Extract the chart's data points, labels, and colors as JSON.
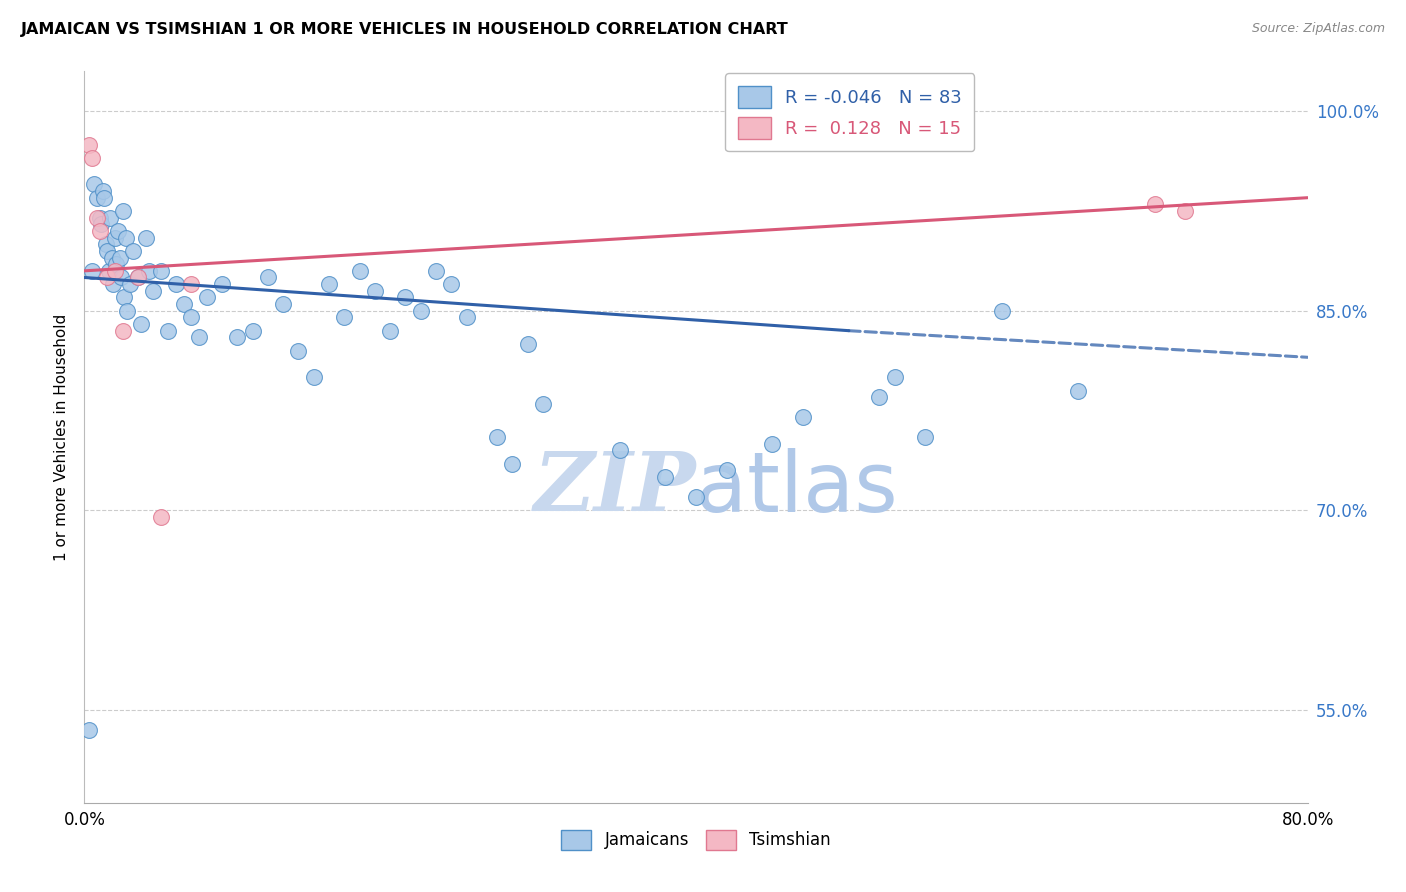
{
  "title": "JAMAICAN VS TSIMSHIAN 1 OR MORE VEHICLES IN HOUSEHOLD CORRELATION CHART",
  "source": "Source: ZipAtlas.com",
  "ylabel": "1 or more Vehicles in Household",
  "xmin": 0.0,
  "xmax": 80.0,
  "ymin": 48.0,
  "ymax": 103.0,
  "yticks": [
    55.0,
    70.0,
    85.0,
    100.0
  ],
  "ytick_labels": [
    "55.0%",
    "70.0%",
    "85.0%",
    "100.0%"
  ],
  "blue_R": -0.046,
  "blue_N": 83,
  "pink_R": 0.128,
  "pink_N": 15,
  "blue_color": "#a8c8e8",
  "blue_edge_color": "#5090c8",
  "blue_line_color": "#3060a8",
  "pink_color": "#f4b8c4",
  "pink_edge_color": "#e07890",
  "pink_line_color": "#d85878",
  "background_color": "#ffffff",
  "grid_color": "#cccccc",
  "right_axis_color": "#3878c8",
  "watermark_zip_color": "#c8d8ee",
  "watermark_atlas_color": "#b0c8e8",
  "blue_scatter_x": [
    0.3,
    0.5,
    0.6,
    0.8,
    1.0,
    1.1,
    1.2,
    1.3,
    1.4,
    1.5,
    1.6,
    1.7,
    1.8,
    1.9,
    2.0,
    2.1,
    2.2,
    2.3,
    2.4,
    2.5,
    2.6,
    2.7,
    2.8,
    3.0,
    3.2,
    3.5,
    3.7,
    4.0,
    4.2,
    4.5,
    5.0,
    5.5,
    6.0,
    6.5,
    7.0,
    7.5,
    8.0,
    9.0,
    10.0,
    11.0,
    12.0,
    13.0,
    14.0,
    15.0,
    16.0,
    17.0,
    18.0,
    19.0,
    20.0,
    21.0,
    22.0,
    23.0,
    24.0,
    25.0,
    27.0,
    28.0,
    29.0,
    30.0,
    35.0,
    38.0,
    40.0,
    42.0,
    45.0,
    47.0,
    52.0,
    53.0,
    55.0,
    60.0,
    65.0
  ],
  "blue_scatter_y": [
    53.5,
    88.0,
    94.5,
    93.5,
    92.0,
    91.5,
    94.0,
    93.5,
    90.0,
    89.5,
    88.0,
    92.0,
    89.0,
    87.0,
    90.5,
    88.5,
    91.0,
    89.0,
    87.5,
    92.5,
    86.0,
    90.5,
    85.0,
    87.0,
    89.5,
    87.5,
    84.0,
    90.5,
    88.0,
    86.5,
    88.0,
    83.5,
    87.0,
    85.5,
    84.5,
    83.0,
    86.0,
    87.0,
    83.0,
    83.5,
    87.5,
    85.5,
    82.0,
    80.0,
    87.0,
    84.5,
    88.0,
    86.5,
    83.5,
    86.0,
    85.0,
    88.0,
    87.0,
    84.5,
    75.5,
    73.5,
    82.5,
    78.0,
    74.5,
    72.5,
    71.0,
    73.0,
    75.0,
    77.0,
    78.5,
    80.0,
    75.5,
    85.0,
    79.0
  ],
  "pink_scatter_x": [
    0.3,
    0.5,
    0.8,
    1.0,
    1.5,
    2.0,
    2.5,
    3.5,
    5.0,
    7.0,
    70.0,
    72.0
  ],
  "pink_scatter_y": [
    97.5,
    96.5,
    92.0,
    91.0,
    87.5,
    88.0,
    83.5,
    87.5,
    69.5,
    87.0,
    93.0,
    92.5
  ],
  "blue_line_x1": 0.0,
  "blue_line_x2": 50.0,
  "blue_line_x3": 80.0,
  "blue_line_y1": 87.5,
  "blue_line_y2": 83.5,
  "blue_line_y3": 81.5,
  "pink_line_x1": 0.0,
  "pink_line_x2": 80.0,
  "pink_line_y1": 88.0,
  "pink_line_y2": 93.5
}
